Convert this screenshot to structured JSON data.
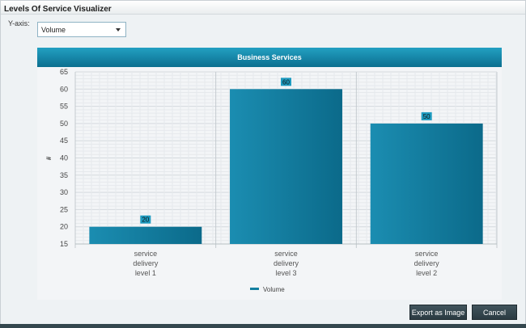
{
  "window": {
    "title": "Levels Of Service Visualizer"
  },
  "controls": {
    "yaxis_label": "Y-axis:",
    "yaxis_value": "Volume"
  },
  "chart_header": "Business Services",
  "chart_data": {
    "type": "bar",
    "title": "Business Services",
    "categories": [
      [
        "service",
        "delivery",
        "level 1"
      ],
      [
        "service",
        "delivery",
        "level 3"
      ],
      [
        "service",
        "delivery",
        "level 2"
      ]
    ],
    "series": [
      {
        "name": "Volume",
        "values": [
          20,
          60,
          50
        ],
        "color": "#137fa0"
      }
    ],
    "ylabel": "#",
    "ylim": [
      15,
      65
    ],
    "yticks": [
      15,
      20,
      25,
      30,
      35,
      40,
      45,
      50,
      55,
      60,
      65
    ],
    "grid": true,
    "legend": "bottom-center"
  },
  "buttons": {
    "export": "Export as Image",
    "cancel": "Cancel"
  },
  "colors": {
    "accent": "#137fa0",
    "label_bg": "#1e9bc0"
  }
}
